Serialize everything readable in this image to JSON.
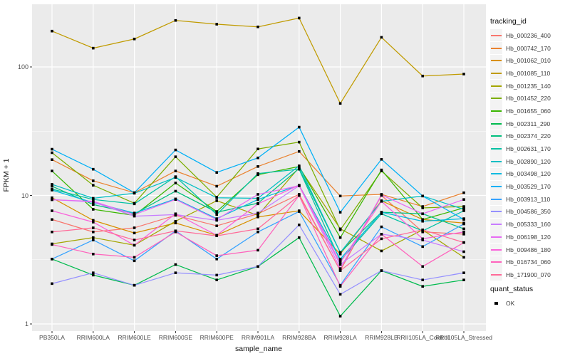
{
  "figure": {
    "background": "#FFFFFF",
    "panel_background": "#EBEBEB",
    "gridline_color": "#FFFFFF",
    "axis_text_color": "#4D4D4D",
    "point_color": "#000000"
  },
  "axes": {
    "y_title": "FPKM + 1",
    "x_title": "sample_name",
    "y_ticks": [
      "100",
      "10",
      "1"
    ]
  },
  "legend": {
    "tracking_title": "tracking_id",
    "quant_title": "quant_status",
    "quant_items": [
      {
        "label": "OK"
      }
    ]
  },
  "chart_data": {
    "type": "line",
    "title": "",
    "xlabel": "sample_name",
    "ylabel": "FPKM + 1",
    "y_scale": "log10",
    "ylim": [
      1,
      300
    ],
    "grid": "white major gridlines at 1,10,100 + minor at half-decades on gray panel; vertical gridline per category",
    "legend_position": "right",
    "point_shape": "small black square (quant_status OK)",
    "x": [
      "PB350LA",
      "RRIM600LA",
      "RRIM600LE",
      "RRIM600SE",
      "RRIM600PE",
      "RRIM901LA",
      "RRIM928BA",
      "RRIM928LA",
      "RRIM928LB",
      "RRII105LA_Control",
      "RRII105LA_Stressed"
    ],
    "series": [
      {
        "name": "Hb_000236_400",
        "color": "#F8766D",
        "values": [
          6.5,
          5.2,
          5.6,
          7.0,
          5.8,
          7.2,
          10.2,
          2.6,
          10.0,
          5.2,
          5.0
        ]
      },
      {
        "name": "Hb_000742_170",
        "color": "#EA8331",
        "values": [
          19.0,
          13.0,
          10.5,
          15.5,
          11.8,
          16.8,
          22.0,
          9.9,
          10.2,
          8.2,
          10.5
        ]
      },
      {
        "name": "Hb_001062_010",
        "color": "#D89000",
        "values": [
          9.6,
          6.4,
          5.1,
          6.1,
          4.9,
          6.8,
          7.6,
          3.5,
          9.1,
          6.5,
          6.1
        ]
      },
      {
        "name": "Hb_001085_110",
        "color": "#C09B00",
        "values": [
          190,
          140,
          165,
          230,
          215,
          205,
          240,
          52,
          170,
          85,
          88
        ]
      },
      {
        "name": "Hb_001235_140",
        "color": "#A3A500",
        "values": [
          4.2,
          4.7,
          4.1,
          6.3,
          9.1,
          7.0,
          16.5,
          5.5,
          3.7,
          5.4,
          3.3
        ]
      },
      {
        "name": "Hb_001452_220",
        "color": "#7CAE00",
        "values": [
          21.5,
          12.0,
          8.7,
          20.0,
          9.7,
          23.0,
          26.0,
          5.4,
          15.5,
          8.0,
          8.2
        ]
      },
      {
        "name": "Hb_001655_060",
        "color": "#39B600",
        "values": [
          15.5,
          7.8,
          7.0,
          12.5,
          7.5,
          14.5,
          16.8,
          4.7,
          15.8,
          6.5,
          8.0
        ]
      },
      {
        "name": "Hb_002311_290",
        "color": "#00BB4E",
        "values": [
          3.2,
          2.4,
          2.0,
          2.9,
          2.2,
          2.8,
          4.7,
          1.15,
          2.6,
          1.96,
          2.2
        ]
      },
      {
        "name": "Hb_002374_220",
        "color": "#00BF7D",
        "values": [
          11.8,
          8.5,
          7.2,
          10.8,
          7.4,
          8.7,
          16.2,
          3.6,
          7.4,
          7.2,
          5.5
        ]
      },
      {
        "name": "Hb_002631_170",
        "color": "#00C1A3",
        "values": [
          11.2,
          9.3,
          8.6,
          14.0,
          7.1,
          14.8,
          16.0,
          3.1,
          7.2,
          5.3,
          7.6
        ]
      },
      {
        "name": "Hb_002890_120",
        "color": "#00BFC4",
        "values": [
          12.2,
          9.5,
          10.4,
          13.8,
          9.6,
          9.5,
          17.0,
          3.6,
          9.0,
          9.9,
          7.8
        ]
      },
      {
        "name": "Hb_003498_120",
        "color": "#00BAE0",
        "values": [
          11.0,
          8.8,
          7.3,
          9.4,
          6.6,
          9.3,
          12.0,
          3.2,
          7.4,
          6.3,
          6.6
        ]
      },
      {
        "name": "Hb_003529_170",
        "color": "#00B0F6",
        "values": [
          22.9,
          16.0,
          10.5,
          22.6,
          15.1,
          19.6,
          34.0,
          7.4,
          19.1,
          9.9,
          6.5
        ]
      },
      {
        "name": "Hb_003913_110",
        "color": "#35A2FF",
        "values": [
          3.2,
          4.5,
          3.1,
          5.3,
          3.2,
          5.2,
          7.5,
          2.0,
          5.7,
          4.0,
          6.0
        ]
      },
      {
        "name": "Hb_004586_350",
        "color": "#9590FF",
        "values": [
          2.06,
          2.5,
          2.0,
          2.5,
          2.4,
          2.8,
          5.9,
          1.7,
          2.6,
          2.2,
          2.5
        ]
      },
      {
        "name": "Hb_005333_160",
        "color": "#C77CFF",
        "values": [
          9.3,
          8.9,
          6.9,
          7.1,
          6.4,
          7.3,
          11.9,
          2.9,
          5.0,
          4.5,
          3.65
        ]
      },
      {
        "name": "Hb_006198_120",
        "color": "#E76BF3",
        "values": [
          9.25,
          9.0,
          7.1,
          9.3,
          6.5,
          10.2,
          11.9,
          2.7,
          10.1,
          7.2,
          9.3
        ]
      },
      {
        "name": "Hb_009486_180",
        "color": "#FA62DB",
        "values": [
          7.6,
          6.2,
          4.1,
          7.2,
          4.9,
          8.6,
          12.0,
          3.0,
          9.0,
          4.6,
          5.2
        ]
      },
      {
        "name": "Hb_016734_060",
        "color": "#FF62BC",
        "values": [
          4.15,
          3.5,
          3.3,
          5.2,
          3.4,
          3.75,
          10.0,
          1.96,
          5.0,
          2.8,
          4.3
        ]
      },
      {
        "name": "Hb_171900_070",
        "color": "#FF6A98",
        "values": [
          5.2,
          5.6,
          4.5,
          5.3,
          4.85,
          5.5,
          10.0,
          2.6,
          4.6,
          5.4,
          4.3
        ]
      }
    ]
  }
}
